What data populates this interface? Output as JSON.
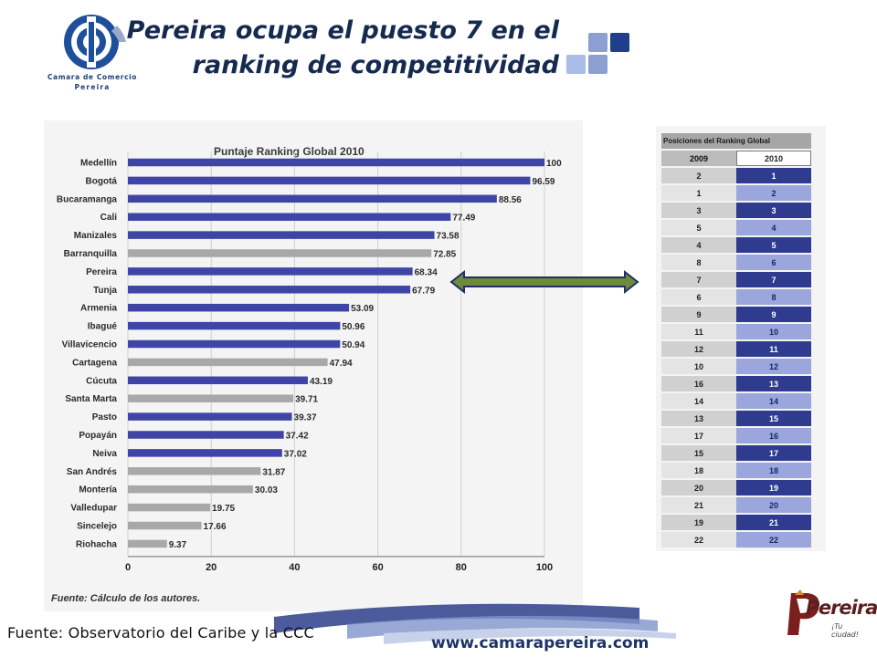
{
  "header": {
    "logo_name_line1": "Camara de Comercio",
    "logo_name_line2": "Pereira",
    "title_line1": "Pereira ocupa el puesto 7 en el",
    "title_line2": "ranking de competitividad"
  },
  "colors": {
    "bar_blue": "#3e45a6",
    "bar_gray": "#a8a8a8",
    "title_navy": "#16294f",
    "table_blue_dark": "#2e3b8f",
    "table_blue_light": "#9aa6dc",
    "arrow_fill": "#6f8a3a",
    "arrow_stroke": "#1f2f6a"
  },
  "chart_data": {
    "type": "bar",
    "orientation": "horizontal",
    "title": "Puntaje Ranking Global 2010",
    "categories": [
      "Medellín",
      "Bogotá",
      "Bucaramanga",
      "Cali",
      "Manizales",
      "Barranquilla",
      "Pereira",
      "Tunja",
      "Armenia",
      "Ibagué",
      "Villavicencio",
      "Cartagena",
      "Cúcuta",
      "Santa Marta",
      "Pasto",
      "Popayán",
      "Neiva",
      "San Andrés",
      "Montería",
      "Valledupar",
      "Sincelejo",
      "Riohacha"
    ],
    "values": [
      100,
      96.59,
      88.56,
      77.49,
      73.58,
      72.85,
      68.34,
      67.79,
      53.09,
      50.96,
      50.94,
      47.94,
      43.19,
      39.71,
      39.37,
      37.42,
      37.02,
      31.87,
      30.03,
      19.75,
      17.66,
      9.37
    ],
    "value_labels": [
      "100",
      "96.59",
      "88.56",
      "77.49",
      "73.58",
      "72.85",
      "68.34",
      "67.79",
      "53.09",
      "50.96",
      "50.94",
      "47.94",
      "43.19",
      "39.71",
      "39.37",
      "37.42",
      "37.02",
      "31.87",
      "30.03",
      "19.75",
      "17.66",
      "9.37"
    ],
    "bar_colors": [
      "blue",
      "blue",
      "blue",
      "blue",
      "blue",
      "gray",
      "blue",
      "blue",
      "blue",
      "blue",
      "blue",
      "gray",
      "blue",
      "gray",
      "blue",
      "blue",
      "blue",
      "gray",
      "gray",
      "gray",
      "gray",
      "gray"
    ],
    "xlim": [
      0,
      100
    ],
    "xticks": [
      "0",
      "20",
      "40",
      "60",
      "80",
      "100"
    ],
    "grid": "vertical",
    "note": "Fuente: Cálculo de los autores."
  },
  "ranking_table": {
    "title": "Posiciones del Ranking Global",
    "year_a": "2009",
    "year_b": "2010",
    "rows": [
      [
        "2",
        "1"
      ],
      [
        "1",
        "2"
      ],
      [
        "3",
        "3"
      ],
      [
        "5",
        "4"
      ],
      [
        "4",
        "5"
      ],
      [
        "8",
        "6"
      ],
      [
        "7",
        "7"
      ],
      [
        "6",
        "8"
      ],
      [
        "9",
        "9"
      ],
      [
        "11",
        "10"
      ],
      [
        "12",
        "11"
      ],
      [
        "10",
        "12"
      ],
      [
        "16",
        "13"
      ],
      [
        "14",
        "14"
      ],
      [
        "13",
        "15"
      ],
      [
        "17",
        "16"
      ],
      [
        "15",
        "17"
      ],
      [
        "18",
        "18"
      ],
      [
        "20",
        "19"
      ],
      [
        "21",
        "20"
      ],
      [
        "19",
        "21"
      ],
      [
        "22",
        "22"
      ]
    ]
  },
  "footer": {
    "source": "Fuente: Observatorio del Caribe y la CCC",
    "url": "www.camarapereira.com",
    "brand": "Pereira",
    "tagline": "¡Tu ciudad!"
  }
}
